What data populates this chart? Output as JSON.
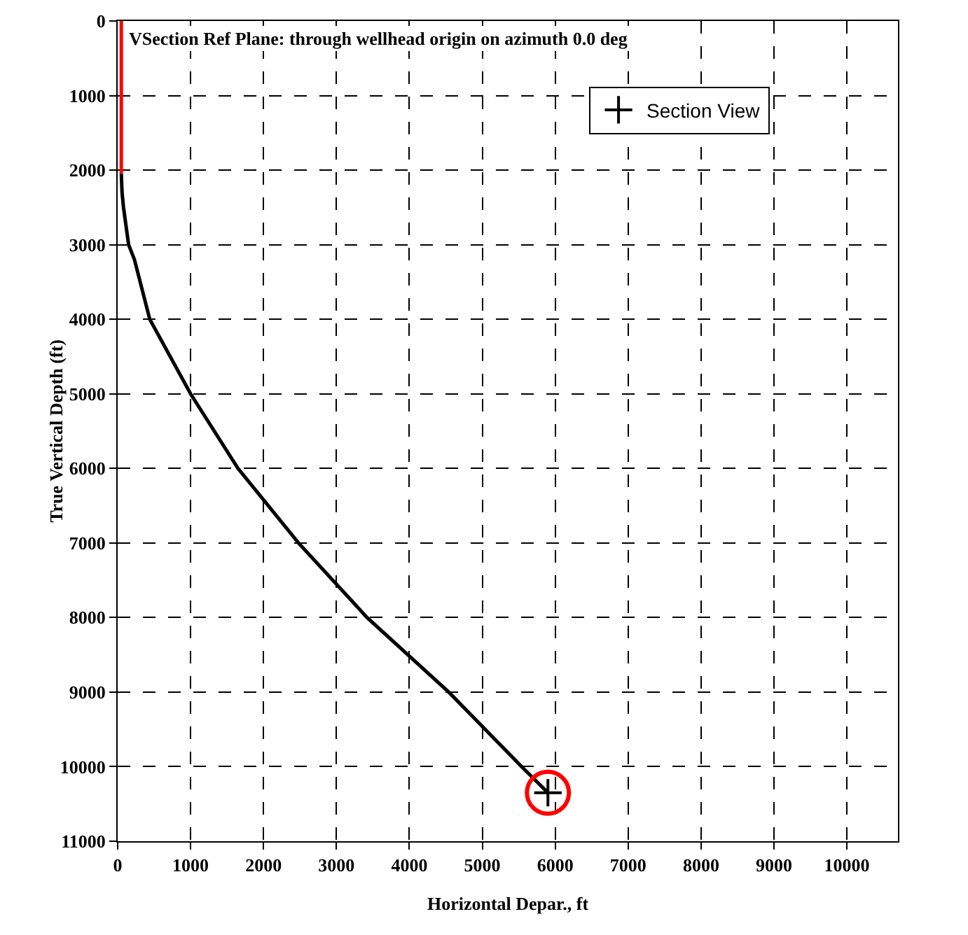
{
  "chart_data": {
    "type": "line",
    "xlabel": "Horizontal Depar., ft",
    "ylabel": "True Vertical Depth (ft)",
    "annotations": [
      "VSection Ref Plane: through wellhead origin on azimuth 0.0 deg"
    ],
    "xlim": [
      0,
      10700
    ],
    "xticks": [
      0,
      1000,
      2000,
      3000,
      4000,
      5000,
      6000,
      7000,
      8000,
      9000,
      10000
    ],
    "ylim": [
      11000,
      0
    ],
    "yticks": [
      0,
      1000,
      2000,
      3000,
      4000,
      5000,
      6000,
      7000,
      8000,
      9000,
      10000,
      11000
    ],
    "grid": true,
    "legend": "top right",
    "series": [
      {
        "color": "#ff0000",
        "marker": "none",
        "x": [
          50,
          50
        ],
        "values": [
          0,
          2050
        ]
      },
      {
        "color": "#000000",
        "marker": "none",
        "x": [
          50,
          60,
          80,
          150,
          230,
          440,
          1000,
          1650,
          2480,
          3420,
          4540,
          5540,
          5900
        ],
        "values": [
          2050,
          2300,
          2500,
          3000,
          3200,
          4000,
          5000,
          6000,
          7000,
          8000,
          9000,
          10000,
          10350
        ]
      },
      {
        "type": "scatter",
        "name": "Section View",
        "color": "#000000",
        "marker": "cross",
        "x": [
          5900
        ],
        "values": [
          10350
        ]
      },
      {
        "type": "scatter",
        "color": "#ff0000",
        "marker": "circle",
        "x": [
          5900
        ],
        "values": [
          10350
        ]
      }
    ]
  }
}
